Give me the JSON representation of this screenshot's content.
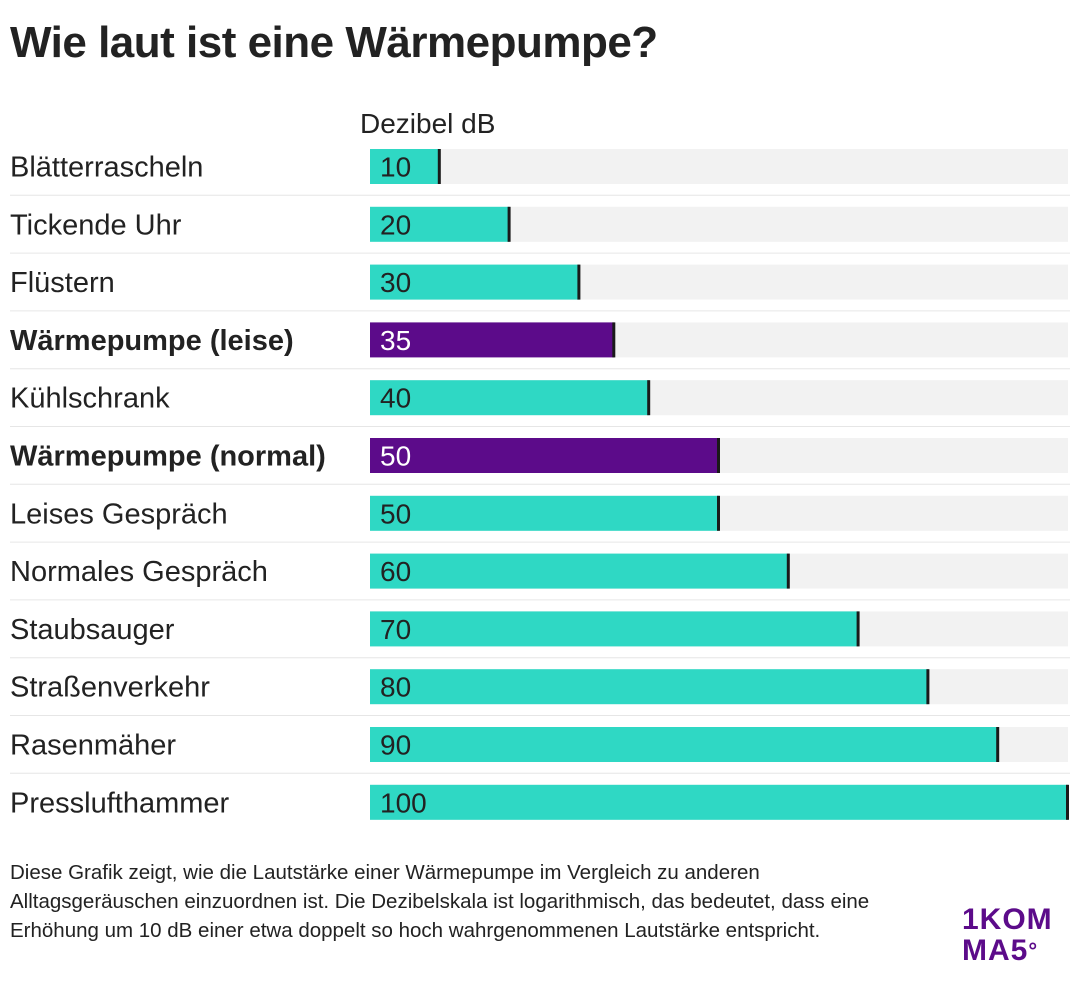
{
  "chart_data": {
    "type": "bar",
    "orientation": "horizontal",
    "title": "Wie laut ist eine Wärmepumpe?",
    "column_header": "Dezibel dB",
    "categories": [
      "Blätterrascheln",
      "Tickende Uhr",
      "Flüstern",
      "Wärmepumpe (leise)",
      "Kühlschrank",
      "Wärmepumpe (normal)",
      "Leises Gespräch",
      "Normales Gespräch",
      "Staubsauger",
      "Straßenverkehr",
      "Rasenmäher",
      "Presslufthammer"
    ],
    "values": [
      10,
      20,
      30,
      35,
      40,
      50,
      50,
      60,
      70,
      80,
      90,
      100
    ],
    "highlighted": [
      false,
      false,
      false,
      true,
      false,
      true,
      false,
      false,
      false,
      false,
      false,
      false
    ],
    "xlim": [
      0,
      100
    ],
    "colors": {
      "default": "#2fd8c4",
      "highlight": "#5c0b8a",
      "track": "#f2f2f2",
      "marker": "#1a1a1a"
    }
  },
  "note": "Diese Grafik zeigt, wie die Lautstärke einer Wärmepumpe im Vergleich zu anderen Alltagsgeräuschen einzuordnen ist. Die Dezibelskala ist logarithmisch, das bedeutet, dass eine Erhöhung um 10 dB einer etwa doppelt so hoch wahrgenommenen Lautstärke entspricht.",
  "logo": {
    "line1": "1KOM",
    "line2": "MA5",
    "sup": "°"
  }
}
